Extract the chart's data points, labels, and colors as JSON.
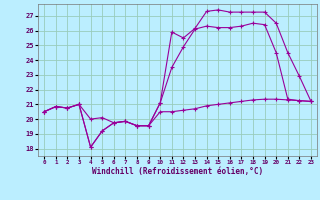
{
  "xlabel": "Windchill (Refroidissement éolien,°C)",
  "background_color": "#bbeeff",
  "grid_color": "#99ccbb",
  "line_color": "#990099",
  "xlim": [
    -0.5,
    23.5
  ],
  "ylim": [
    17.5,
    27.8
  ],
  "yticks": [
    18,
    19,
    20,
    21,
    22,
    23,
    24,
    25,
    26,
    27
  ],
  "xticks": [
    0,
    1,
    2,
    3,
    4,
    5,
    6,
    7,
    8,
    9,
    10,
    11,
    12,
    13,
    14,
    15,
    16,
    17,
    18,
    19,
    20,
    21,
    22,
    23
  ],
  "line1_x": [
    0,
    1,
    2,
    3,
    4,
    5,
    6,
    7,
    8,
    9,
    10,
    11,
    12,
    13,
    14,
    15,
    16,
    17,
    18,
    19,
    20,
    21,
    22,
    23
  ],
  "line1_y": [
    20.5,
    20.85,
    20.75,
    21.0,
    20.0,
    20.1,
    19.75,
    19.85,
    19.55,
    19.55,
    20.5,
    20.5,
    20.6,
    20.7,
    20.9,
    21.0,
    21.1,
    21.2,
    21.3,
    21.35,
    21.35,
    21.3,
    21.25,
    21.2
  ],
  "line2_x": [
    0,
    1,
    2,
    3,
    4,
    5,
    6,
    7,
    8,
    9,
    10,
    11,
    12,
    13,
    14,
    15,
    16,
    17,
    18,
    19,
    20,
    21,
    22,
    23
  ],
  "line2_y": [
    20.5,
    20.85,
    20.75,
    21.0,
    18.1,
    19.2,
    19.75,
    19.85,
    19.55,
    19.55,
    21.1,
    23.5,
    24.9,
    26.1,
    26.3,
    26.2,
    26.2,
    26.3,
    26.5,
    26.4,
    24.5,
    21.35,
    21.25,
    21.2
  ],
  "line3_x": [
    0,
    1,
    2,
    3,
    4,
    5,
    6,
    7,
    8,
    9,
    10,
    11,
    12,
    13,
    14,
    15,
    16,
    17,
    18,
    19,
    20,
    21,
    22,
    23
  ],
  "line3_y": [
    20.5,
    20.85,
    20.75,
    21.0,
    18.1,
    19.2,
    19.75,
    19.85,
    19.55,
    19.55,
    21.1,
    25.9,
    25.5,
    26.15,
    27.3,
    27.4,
    27.25,
    27.25,
    27.25,
    27.25,
    26.5,
    24.5,
    22.9,
    21.2
  ],
  "figsize": [
    3.2,
    2.0
  ],
  "dpi": 100
}
